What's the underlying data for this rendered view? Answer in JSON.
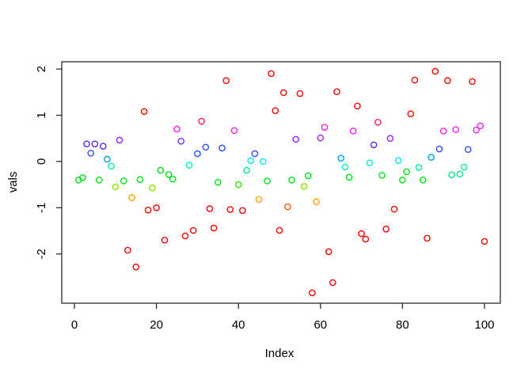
{
  "chart_data": {
    "type": "scatter",
    "title": "",
    "xlabel": "Index",
    "ylabel": "vals",
    "xlim": [
      0,
      100
    ],
    "ylim": [
      -2.9,
      2.1
    ],
    "x_ticks": [
      0,
      20,
      40,
      60,
      80,
      100
    ],
    "y_ticks": [
      -2,
      -1,
      0,
      1,
      2
    ],
    "grid": false,
    "legend": "none",
    "marker": "open-circle",
    "points": [
      {
        "x": 1,
        "y": -0.4,
        "color": "#00E31C"
      },
      {
        "x": 2,
        "y": -0.35,
        "color": "#00E31C"
      },
      {
        "x": 3,
        "y": 0.38,
        "color": "#5526FF"
      },
      {
        "x": 4,
        "y": 0.18,
        "color": "#2952FF"
      },
      {
        "x": 5,
        "y": 0.38,
        "color": "#5526FF"
      },
      {
        "x": 6,
        "y": -0.4,
        "color": "#00E31C"
      },
      {
        "x": 7,
        "y": 0.33,
        "color": "#5526FF"
      },
      {
        "x": 8,
        "y": 0.05,
        "color": "#009FFF"
      },
      {
        "x": 9,
        "y": -0.1,
        "color": "#00F0C0"
      },
      {
        "x": 10,
        "y": -0.55,
        "color": "#8CE600"
      },
      {
        "x": 11,
        "y": 0.46,
        "color": "#9922FF"
      },
      {
        "x": 12,
        "y": -0.42,
        "color": "#00E31C"
      },
      {
        "x": 13,
        "y": -1.92,
        "color": "#FF0000"
      },
      {
        "x": 14,
        "y": -0.78,
        "color": "#FFA300"
      },
      {
        "x": 15,
        "y": -2.28,
        "color": "#FF0000"
      },
      {
        "x": 16,
        "y": -0.39,
        "color": "#00E31C"
      },
      {
        "x": 17,
        "y": 1.08,
        "color": "#FF0000"
      },
      {
        "x": 18,
        "y": -1.05,
        "color": "#FF0000"
      },
      {
        "x": 19,
        "y": -0.57,
        "color": "#8CE600"
      },
      {
        "x": 20,
        "y": -1.0,
        "color": "#FF0000"
      },
      {
        "x": 21,
        "y": -0.19,
        "color": "#00E31C"
      },
      {
        "x": 22,
        "y": -1.7,
        "color": "#FF0000"
      },
      {
        "x": 23,
        "y": -0.28,
        "color": "#00E31C"
      },
      {
        "x": 24,
        "y": -0.38,
        "color": "#00E31C"
      },
      {
        "x": 25,
        "y": 0.7,
        "color": "#F522F0"
      },
      {
        "x": 26,
        "y": 0.44,
        "color": "#7A2BF5"
      },
      {
        "x": 27,
        "y": -1.61,
        "color": "#FF0000"
      },
      {
        "x": 28,
        "y": -0.08,
        "color": "#00F0C0"
      },
      {
        "x": 29,
        "y": -1.49,
        "color": "#FF0000"
      },
      {
        "x": 30,
        "y": 0.17,
        "color": "#2952FF"
      },
      {
        "x": 31,
        "y": 0.87,
        "color": "#FF2060"
      },
      {
        "x": 32,
        "y": 0.31,
        "color": "#2952FF"
      },
      {
        "x": 33,
        "y": -1.02,
        "color": "#FF0000"
      },
      {
        "x": 34,
        "y": -1.44,
        "color": "#FF0000"
      },
      {
        "x": 35,
        "y": -0.45,
        "color": "#00E31C"
      },
      {
        "x": 36,
        "y": 0.29,
        "color": "#2952FF"
      },
      {
        "x": 37,
        "y": 1.75,
        "color": "#FF0000"
      },
      {
        "x": 38,
        "y": -1.04,
        "color": "#FF0000"
      },
      {
        "x": 39,
        "y": 0.67,
        "color": "#F522F0"
      },
      {
        "x": 40,
        "y": -0.5,
        "color": "#33E300"
      },
      {
        "x": 41,
        "y": -1.06,
        "color": "#FF0000"
      },
      {
        "x": 42,
        "y": -0.19,
        "color": "#00EE88"
      },
      {
        "x": 43,
        "y": 0.02,
        "color": "#00E8F8"
      },
      {
        "x": 44,
        "y": 0.17,
        "color": "#2952FF"
      },
      {
        "x": 45,
        "y": -0.82,
        "color": "#FFA300"
      },
      {
        "x": 46,
        "y": 0.0,
        "color": "#00E8F8"
      },
      {
        "x": 47,
        "y": -0.42,
        "color": "#00E31C"
      },
      {
        "x": 48,
        "y": 1.9,
        "color": "#FF0000"
      },
      {
        "x": 49,
        "y": 1.1,
        "color": "#FF0000"
      },
      {
        "x": 50,
        "y": -1.49,
        "color": "#FF0000"
      },
      {
        "x": 51,
        "y": 1.49,
        "color": "#FF0000"
      },
      {
        "x": 52,
        "y": -0.98,
        "color": "#FF5500"
      },
      {
        "x": 53,
        "y": -0.4,
        "color": "#00E31C"
      },
      {
        "x": 54,
        "y": 0.48,
        "color": "#9922FF"
      },
      {
        "x": 55,
        "y": 1.47,
        "color": "#FF0000"
      },
      {
        "x": 56,
        "y": -0.54,
        "color": "#8CE600"
      },
      {
        "x": 57,
        "y": -0.31,
        "color": "#00E31C"
      },
      {
        "x": 58,
        "y": -2.84,
        "color": "#FF0000"
      },
      {
        "x": 59,
        "y": -0.87,
        "color": "#FFA300"
      },
      {
        "x": 60,
        "y": 0.51,
        "color": "#9922FF"
      },
      {
        "x": 61,
        "y": 0.74,
        "color": "#F522F0"
      },
      {
        "x": 62,
        "y": -1.95,
        "color": "#FF0000"
      },
      {
        "x": 63,
        "y": -2.62,
        "color": "#FF0000"
      },
      {
        "x": 64,
        "y": 1.51,
        "color": "#FF0000"
      },
      {
        "x": 65,
        "y": 0.07,
        "color": "#009FFF"
      },
      {
        "x": 66,
        "y": -0.12,
        "color": "#00F0C0"
      },
      {
        "x": 67,
        "y": -0.34,
        "color": "#00E31C"
      },
      {
        "x": 68,
        "y": 0.66,
        "color": "#F522F0"
      },
      {
        "x": 69,
        "y": 1.2,
        "color": "#FF0000"
      },
      {
        "x": 70,
        "y": -1.56,
        "color": "#FF0000"
      },
      {
        "x": 71,
        "y": -1.68,
        "color": "#FF0000"
      },
      {
        "x": 72,
        "y": -0.03,
        "color": "#00E8F8"
      },
      {
        "x": 73,
        "y": 0.36,
        "color": "#5526FF"
      },
      {
        "x": 74,
        "y": 0.85,
        "color": "#FF2060"
      },
      {
        "x": 75,
        "y": -0.3,
        "color": "#00E31C"
      },
      {
        "x": 76,
        "y": -1.46,
        "color": "#FF0000"
      },
      {
        "x": 77,
        "y": 0.5,
        "color": "#9922FF"
      },
      {
        "x": 78,
        "y": -1.03,
        "color": "#FF0000"
      },
      {
        "x": 79,
        "y": 0.02,
        "color": "#00E8F8"
      },
      {
        "x": 80,
        "y": -0.4,
        "color": "#00E31C"
      },
      {
        "x": 81,
        "y": -0.22,
        "color": "#00E31C"
      },
      {
        "x": 82,
        "y": 1.03,
        "color": "#FF0000"
      },
      {
        "x": 83,
        "y": 1.76,
        "color": "#FF0000"
      },
      {
        "x": 84,
        "y": -0.13,
        "color": "#00EE88"
      },
      {
        "x": 85,
        "y": -0.4,
        "color": "#00E31C"
      },
      {
        "x": 86,
        "y": -1.66,
        "color": "#FF0000"
      },
      {
        "x": 87,
        "y": 0.09,
        "color": "#009FFF"
      },
      {
        "x": 88,
        "y": 1.95,
        "color": "#FF0000"
      },
      {
        "x": 89,
        "y": 0.27,
        "color": "#2952FF"
      },
      {
        "x": 90,
        "y": 0.66,
        "color": "#F522F0"
      },
      {
        "x": 91,
        "y": 1.75,
        "color": "#FF0000"
      },
      {
        "x": 92,
        "y": -0.29,
        "color": "#00EE88"
      },
      {
        "x": 93,
        "y": 0.69,
        "color": "#F522F0"
      },
      {
        "x": 94,
        "y": -0.27,
        "color": "#00EE88"
      },
      {
        "x": 95,
        "y": -0.12,
        "color": "#00EE88"
      },
      {
        "x": 96,
        "y": 0.26,
        "color": "#2952FF"
      },
      {
        "x": 97,
        "y": 1.73,
        "color": "#FF0000"
      },
      {
        "x": 98,
        "y": 0.68,
        "color": "#F522F0"
      },
      {
        "x": 99,
        "y": 0.77,
        "color": "#F522F0"
      },
      {
        "x": 100,
        "y": -1.73,
        "color": "#FF0000"
      }
    ]
  }
}
